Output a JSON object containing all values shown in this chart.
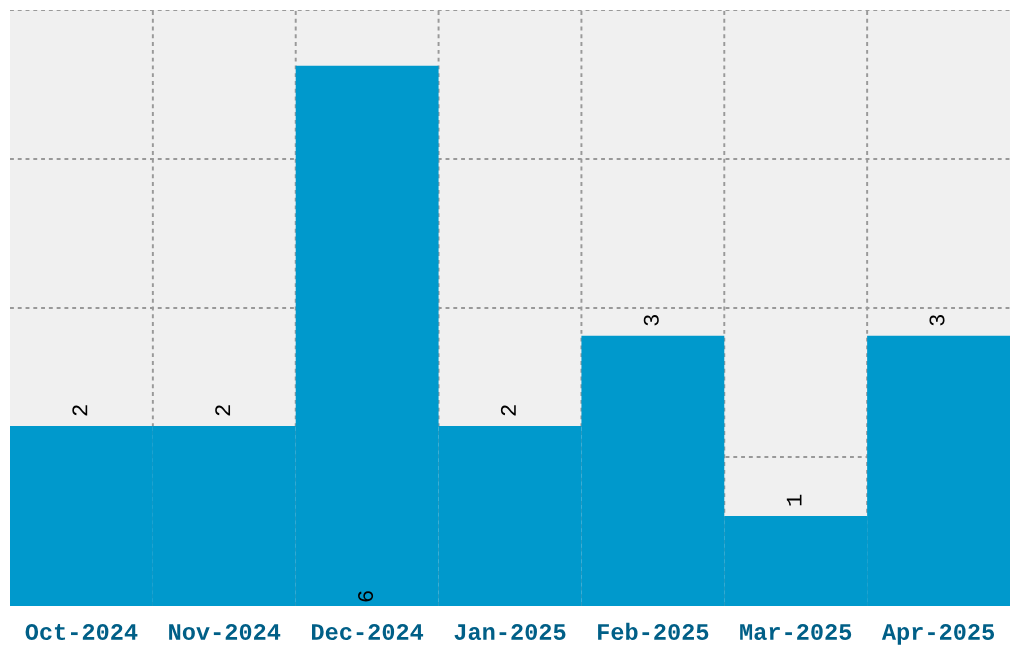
{
  "chart_data": {
    "type": "bar",
    "categories": [
      "Oct-2024",
      "Nov-2024",
      "Dec-2024",
      "Jan-2025",
      "Feb-2025",
      "Mar-2025",
      "Apr-2025"
    ],
    "values": [
      2,
      2,
      6,
      2,
      3,
      1,
      3
    ],
    "color": "#0099cc",
    "data_labels": true,
    "grid": true,
    "tick_labels": "x"
  }
}
